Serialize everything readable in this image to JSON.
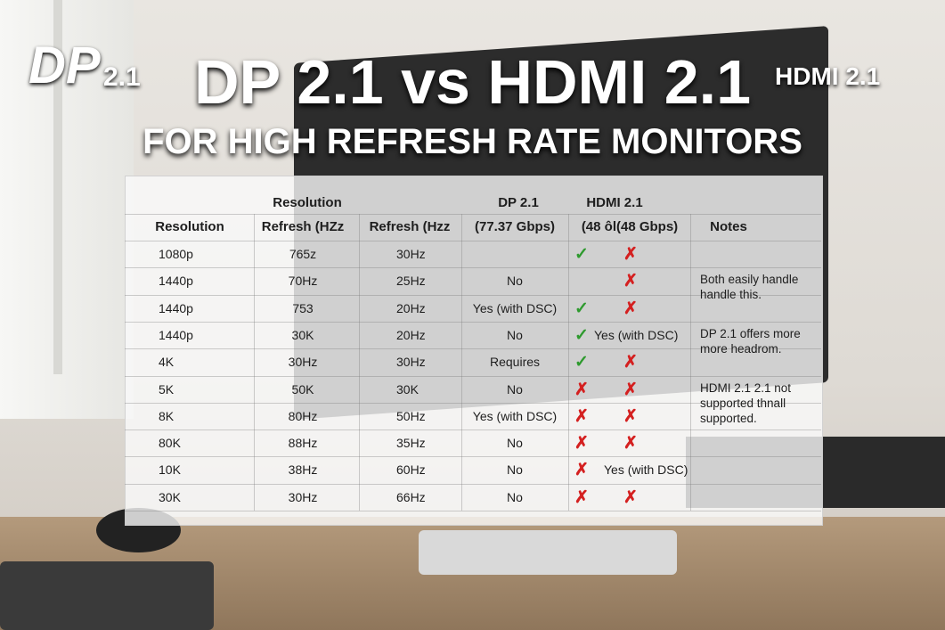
{
  "logos": {
    "left": {
      "mark": "DP",
      "version": "2.1"
    },
    "right": "HDMI 2.1"
  },
  "header": {
    "title": "DP 2.1 vs HDMI 2.1",
    "subtitle": "FOR HIGH REFRESH RATE MONITORS"
  },
  "table": {
    "group_headers": [
      "Resolution",
      "DP 2.1",
      "HDMI 2.1"
    ],
    "headers": [
      "Resolution",
      "Refresh (HZz",
      "Refresh (Hzz",
      "(77.37 Gbps)",
      "(48 ôl(48 Gbps)",
      "Notes"
    ],
    "rows": [
      [
        "1080p",
        "765z",
        "30Hz",
        null,
        "✓",
        "✗"
      ],
      [
        "1440p",
        "70Hz",
        "25Hz",
        "No",
        null,
        "✗"
      ],
      [
        "1440p",
        "753",
        "20Hz",
        "Yes (with DSC)",
        "✓",
        "✗"
      ],
      [
        "1440p",
        "30K",
        "20Hz",
        "No",
        "✓",
        "Yes (with DSC)"
      ],
      [
        "4K",
        "30Hz",
        "30Hz",
        "Requires",
        "✓",
        "✗"
      ],
      [
        "5K",
        "50K",
        "30K",
        "No",
        "✗",
        "✗"
      ],
      [
        "8K",
        "80Hz",
        "50Hz",
        "Yes (with DSC)",
        "✗",
        "✗"
      ],
      [
        "80K",
        "88Hz",
        "35Hz",
        "No",
        "✗",
        "✗"
      ],
      [
        "10K",
        "38Hz",
        "60Hz",
        "No",
        "✗",
        "Yes (with DSC)"
      ],
      [
        "30K",
        "30Hz",
        "66Hz",
        "No",
        "✗",
        "✗"
      ]
    ],
    "notes": [
      {
        "row": 1,
        "lines": [
          "Both easily handle",
          "handle this."
        ]
      },
      {
        "row": 3,
        "lines": [
          "DP 2.1 offers more",
          "more headrom."
        ]
      },
      {
        "row": 5,
        "lines": [
          "HDMI 2.1 2.1 not",
          "supported thnall",
          "supported."
        ]
      }
    ]
  }
}
